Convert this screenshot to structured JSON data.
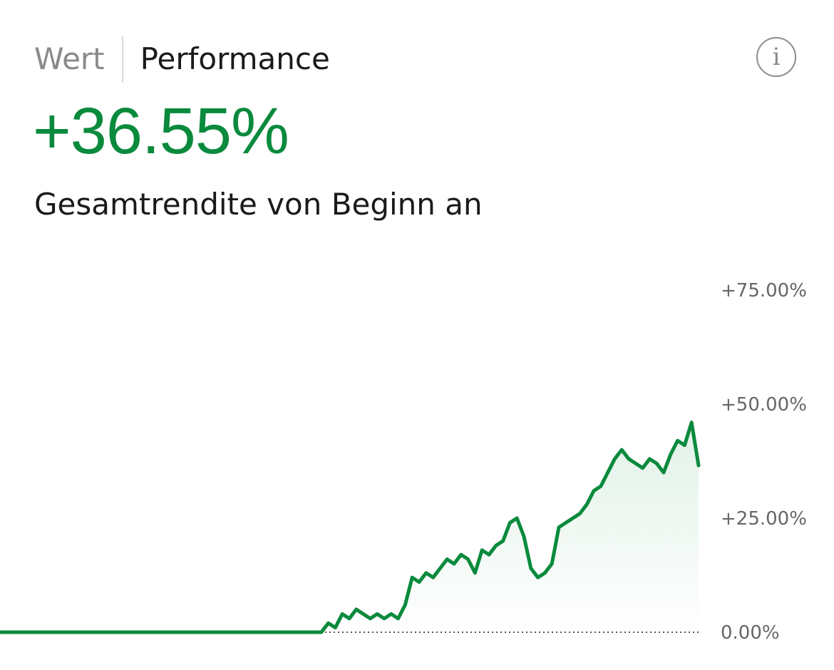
{
  "tabs": {
    "wert": "Wert",
    "performance": "Performance"
  },
  "info_icon": "info-icon",
  "performance_value": "+36.55%",
  "subtitle": "Gesamtrendite von Beginn an",
  "colors": {
    "positive": "#0a8a3c",
    "inactive": "#8a8a8a"
  },
  "chart_data": {
    "type": "area",
    "title": "",
    "xlabel": "",
    "ylabel": "",
    "ylim": [
      0,
      75
    ],
    "yticks": [
      0,
      25,
      50,
      75
    ],
    "ytick_labels": [
      "0.00%",
      "+25.00%",
      "+50.00%",
      "+75.00%"
    ],
    "grid": false,
    "baseline_dotted": true,
    "x": [
      0,
      46,
      47,
      48,
      49,
      50,
      51,
      52,
      53,
      54,
      55,
      56,
      57,
      58,
      59,
      60,
      61,
      62,
      63,
      64,
      65,
      66,
      67,
      68,
      69,
      70,
      71,
      72,
      73,
      74,
      75,
      76,
      77,
      78,
      79,
      80,
      81,
      82,
      83,
      84,
      85,
      86,
      87,
      88,
      89,
      90,
      91,
      92,
      93,
      94,
      95,
      96,
      97,
      98,
      99,
      100
    ],
    "values": [
      0,
      0,
      2,
      1,
      4,
      3,
      5,
      4,
      3,
      4,
      3,
      4,
      3,
      6,
      12,
      11,
      13,
      12,
      14,
      16,
      15,
      17,
      16,
      13,
      18,
      17,
      19,
      20,
      24,
      25,
      21,
      14,
      12,
      13,
      15,
      23,
      24,
      25,
      26,
      28,
      31,
      32,
      35,
      38,
      40,
      38,
      37,
      36,
      38,
      37,
      35,
      39,
      42,
      41,
      46,
      36.55
    ]
  }
}
